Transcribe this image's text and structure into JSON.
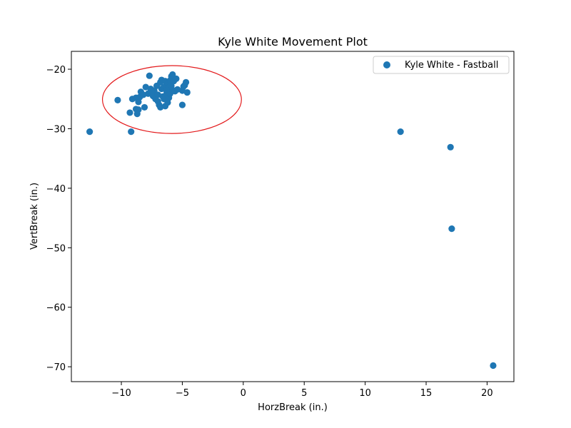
{
  "chart_data": {
    "type": "scatter",
    "title": "Kyle White Movement Plot",
    "xlabel": "HorzBreak (in.)",
    "ylabel": "VertBreak (in.)",
    "xlim": [
      -14.1,
      22.2
    ],
    "ylim": [
      -72.5,
      -17
    ],
    "xticks": [
      -10,
      -5,
      0,
      5,
      10,
      15,
      20
    ],
    "yticks": [
      -70,
      -60,
      -50,
      -40,
      -30,
      -20
    ],
    "grid": false,
    "legend_position": "top-right",
    "series": [
      {
        "name": "Kyle White - Fastball",
        "color": "#1f77b4",
        "points": [
          [
            -12.6,
            -30.5
          ],
          [
            -10.3,
            -25.2
          ],
          [
            -9.3,
            -27.3
          ],
          [
            -9.2,
            -30.5
          ],
          [
            -9.1,
            -25.0
          ],
          [
            -8.8,
            -24.8
          ],
          [
            -8.8,
            -26.7
          ],
          [
            -8.7,
            -27.5
          ],
          [
            -8.6,
            -26.8
          ],
          [
            -8.6,
            -25.5
          ],
          [
            -8.5,
            -24.7
          ],
          [
            -8.4,
            -23.8
          ],
          [
            -8.2,
            -24.3
          ],
          [
            -8.1,
            -26.4
          ],
          [
            -8.0,
            -23.0
          ],
          [
            -7.8,
            -24.1
          ],
          [
            -7.7,
            -21.1
          ],
          [
            -7.6,
            -23.3
          ],
          [
            -7.5,
            -24.0
          ],
          [
            -7.4,
            -24.5
          ],
          [
            -7.3,
            -23.6
          ],
          [
            -7.2,
            -25.0
          ],
          [
            -7.1,
            -22.8
          ],
          [
            -7.0,
            -24.3
          ],
          [
            -7.0,
            -25.4
          ],
          [
            -6.9,
            -26.0
          ],
          [
            -6.8,
            -26.4
          ],
          [
            -6.8,
            -22.2
          ],
          [
            -6.7,
            -21.8
          ],
          [
            -6.7,
            -23.3
          ],
          [
            -6.6,
            -24.6
          ],
          [
            -6.5,
            -25.0
          ],
          [
            -6.5,
            -23.0
          ],
          [
            -6.4,
            -22.0
          ],
          [
            -6.4,
            -26.2
          ],
          [
            -6.3,
            -24.2
          ],
          [
            -6.3,
            -23.6
          ],
          [
            -6.2,
            -25.6
          ],
          [
            -6.2,
            -22.4
          ],
          [
            -6.1,
            -24.8
          ],
          [
            -6.1,
            -23.1
          ],
          [
            -6.0,
            -21.9
          ],
          [
            -6.0,
            -24.1
          ],
          [
            -5.9,
            -21.2
          ],
          [
            -5.9,
            -22.8
          ],
          [
            -5.8,
            -20.9
          ],
          [
            -5.8,
            -23.5
          ],
          [
            -5.7,
            -22.0
          ],
          [
            -5.6,
            -23.7
          ],
          [
            -5.5,
            -21.6
          ],
          [
            -5.4,
            -23.4
          ],
          [
            -5.0,
            -26.0
          ],
          [
            -5.0,
            -23.6
          ],
          [
            -4.9,
            -22.9
          ],
          [
            -4.8,
            -22.7
          ],
          [
            -4.7,
            -22.2
          ],
          [
            -4.6,
            -23.9
          ],
          [
            12.9,
            -30.5
          ],
          [
            17.0,
            -33.1
          ],
          [
            17.1,
            -46.8
          ],
          [
            20.5,
            -69.8
          ]
        ]
      }
    ],
    "annotations": [
      {
        "type": "ellipse",
        "color": "#e31a1c",
        "center": [
          -5.85,
          -25.1
        ],
        "radius_x": 5.7,
        "radius_y": 5.7
      }
    ]
  }
}
